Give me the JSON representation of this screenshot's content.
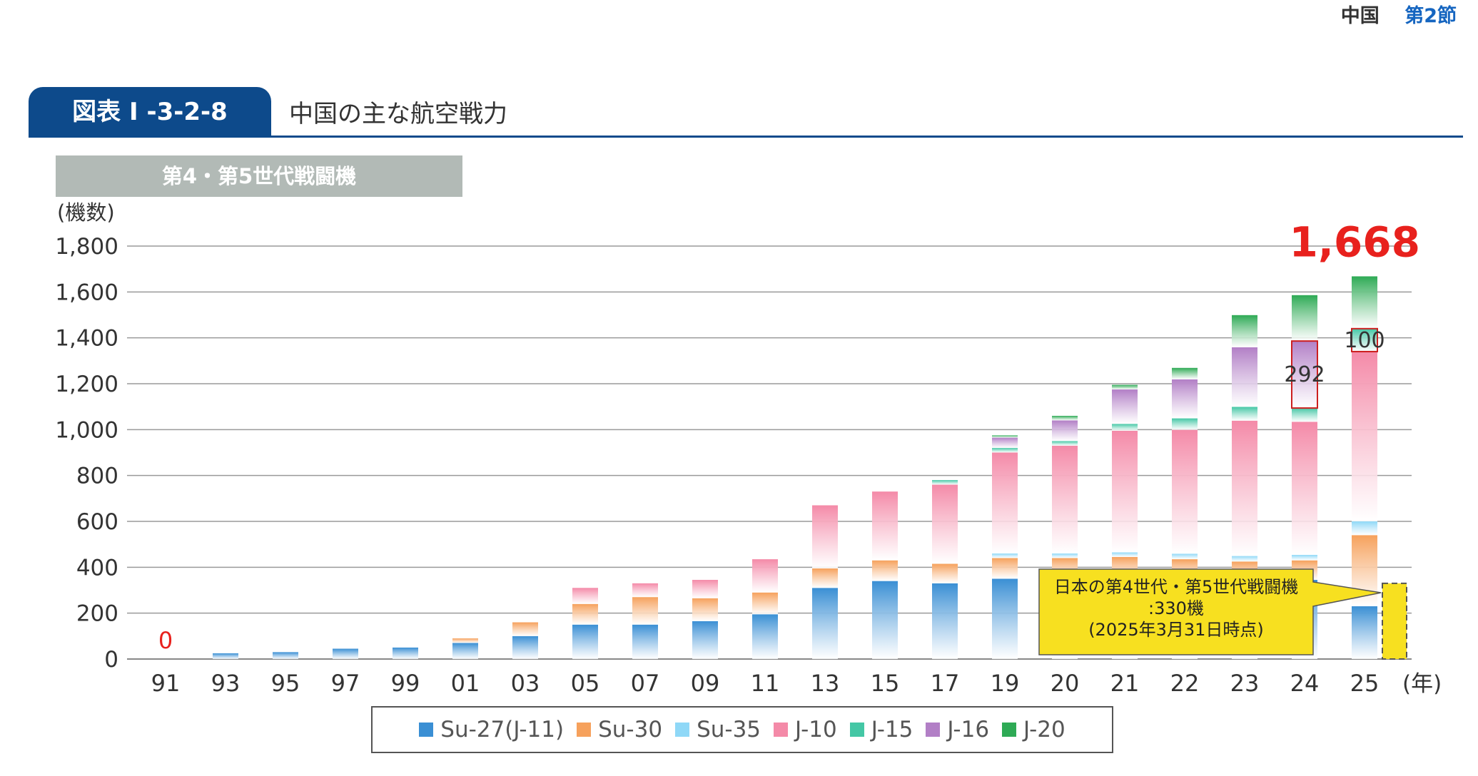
{
  "header": {
    "country": "中国",
    "section": "第2節"
  },
  "figure": {
    "number": "図表 I -3-2-8",
    "title": "中国の主な航空戦力",
    "subtitle": "第4・第5世代戦闘機"
  },
  "chart_data": {
    "type": "bar",
    "stacked": true,
    "ylabel": "(機数)",
    "xlabel": "(年)",
    "ylim": [
      0,
      1800
    ],
    "yticks": [
      "0",
      "200",
      "400",
      "600",
      "800",
      "1,000",
      "1,200",
      "1,400",
      "1,600",
      "1,800"
    ],
    "grid": true,
    "legend_position": "bottom",
    "categories": [
      "91",
      "93",
      "95",
      "97",
      "99",
      "01",
      "03",
      "05",
      "07",
      "09",
      "11",
      "13",
      "15",
      "17",
      "19",
      "20",
      "21",
      "22",
      "23",
      "24",
      "25"
    ],
    "series": [
      {
        "name": "Su-27(J-11)",
        "color": "#3a8fd4",
        "values": [
          0,
          25,
          30,
          45,
          50,
          70,
          100,
          150,
          150,
          165,
          195,
          310,
          340,
          330,
          350,
          355,
          350,
          350,
          345,
          345,
          230
        ]
      },
      {
        "name": "Su-30",
        "color": "#f6a15c",
        "values": [
          0,
          0,
          0,
          0,
          0,
          20,
          60,
          90,
          120,
          100,
          95,
          85,
          90,
          85,
          90,
          85,
          95,
          85,
          80,
          85,
          310
        ]
      },
      {
        "name": "Su-35",
        "color": "#8fd8f7",
        "values": [
          0,
          0,
          0,
          0,
          0,
          0,
          0,
          0,
          0,
          0,
          0,
          0,
          0,
          0,
          20,
          20,
          20,
          24,
          24,
          24,
          60
        ]
      },
      {
        "name": "J-10",
        "color": "#f48aa8",
        "values": [
          0,
          0,
          0,
          0,
          0,
          0,
          0,
          70,
          60,
          80,
          145,
          275,
          300,
          345,
          440,
          470,
          530,
          540,
          590,
          580,
          740
        ]
      },
      {
        "name": "J-15",
        "color": "#44c7a5",
        "values": [
          0,
          0,
          0,
          0,
          0,
          0,
          0,
          0,
          0,
          0,
          0,
          0,
          0,
          20,
          20,
          20,
          30,
          50,
          60,
          60,
          100
        ]
      },
      {
        "name": "J-16",
        "color": "#b27fc6",
        "values": [
          0,
          0,
          0,
          0,
          0,
          0,
          0,
          0,
          0,
          0,
          0,
          0,
          0,
          0,
          45,
          90,
          150,
          170,
          260,
          292,
          0
        ]
      },
      {
        "name": "J-20",
        "color": "#2eaa55",
        "values": [
          0,
          0,
          0,
          0,
          0,
          0,
          0,
          0,
          0,
          0,
          0,
          0,
          0,
          0,
          10,
          20,
          20,
          50,
          140,
          200,
          228
        ]
      }
    ],
    "annotations": [
      {
        "text": "0",
        "category": "91",
        "color": "#e8211d"
      },
      {
        "text": "1,668",
        "category": "25",
        "value": 1668,
        "color": "#e8211d"
      },
      {
        "text": "292",
        "category": "24",
        "series": "J-16"
      },
      {
        "text": "100",
        "category": "25",
        "series": "J-15"
      }
    ],
    "japan_comparison": {
      "value": 330,
      "label_lines": [
        "日本の第4世代・第5世代戦闘機",
        ":330機",
        "(2025年3月31日時点)"
      ],
      "color": "#f7e020"
    }
  }
}
